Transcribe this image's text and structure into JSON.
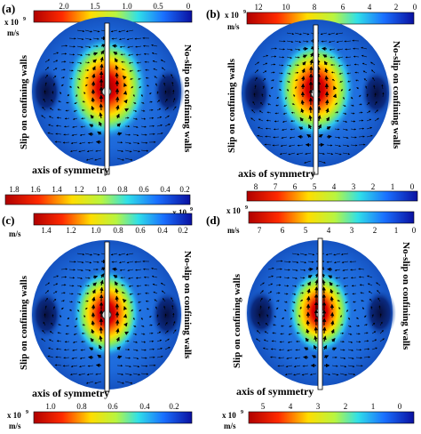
{
  "panels": [
    {
      "id": "a",
      "label": "(a)",
      "exponent_base": "x 10",
      "exponent_power": "9",
      "unit": "m/s",
      "ticks": [
        "2.0",
        "1.5",
        "1.0",
        "0.5",
        "0"
      ],
      "left_label": "Slip on confining walls",
      "right_label": "No-slip on confining walls",
      "axis_label": "axis of symmetry"
    },
    {
      "id": "b",
      "label": "(b)",
      "exponent_base": "x 10",
      "exponent_power": "9",
      "unit": "m/s",
      "ticks": [
        "12",
        "10",
        "8",
        "6",
        "4",
        "2",
        "0"
      ],
      "left_label": "Slip on confining walls",
      "right_label": "No-slip on confining walls",
      "axis_label": "axis of symmetry"
    },
    {
      "id": "c",
      "label": "(c)",
      "exponent_base": "x 10",
      "exponent_power": "9",
      "unit": "m/s",
      "ticks": [
        "1.4",
        "1.2",
        "1.0",
        "0.8",
        "0.6",
        "0.4",
        "0.2"
      ],
      "top_ticks": [
        "1.8",
        "1.6",
        "1.4",
        "1.2",
        "1.0",
        "0.8",
        "0.6",
        "0.4",
        "0.2"
      ],
      "bottom_ticks": [
        "1.0",
        "0.8",
        "0.6",
        "0.4",
        "0.2"
      ],
      "left_label": "Slip on confining walls",
      "right_label": "No-slip on confining walls",
      "axis_label": "axis of symmetry"
    },
    {
      "id": "d",
      "label": "(d)",
      "exponent_base": "x 10",
      "exponent_power": "9",
      "unit": "m/s",
      "ticks": [
        "7",
        "6",
        "5",
        "4",
        "3",
        "2",
        "1",
        "0"
      ],
      "top_ticks": [
        "8",
        "7",
        "6",
        "5",
        "4",
        "3",
        "2",
        "1",
        "0"
      ],
      "bottom_ticks": [
        "5",
        "4",
        "3",
        "2",
        "1",
        "0"
      ],
      "left_label": "Slip on confining walls",
      "right_label": "No-slip on confining walls",
      "axis_label": "axis of symmetry"
    }
  ],
  "colors": {
    "background_field": "#1a5fd0",
    "core": "#b40000"
  }
}
